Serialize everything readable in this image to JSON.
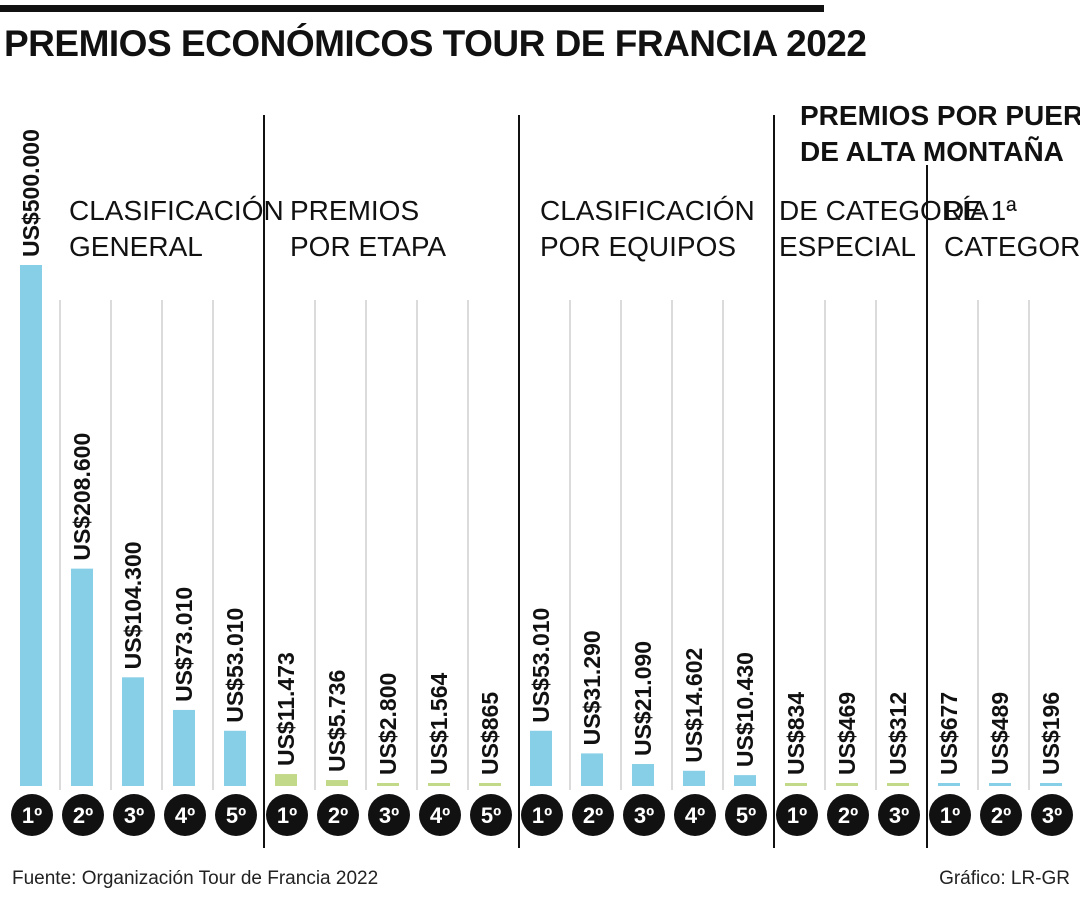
{
  "title": "PREMIOS ECONÓMICOS TOUR DE FRANCIA 2022",
  "source": "Fuente: Organización Tour de Francia 2022",
  "credit": "Gráfico: LR-GR",
  "mountain_header": [
    "PREMIOS POR PUERTOS",
    "DE ALTA MONTAÑA"
  ],
  "colors": {
    "blue": "#86cfe6",
    "green": "#c3d98a",
    "grid": "#cfcfcf",
    "divider": "#111111",
    "badge": "#111111"
  },
  "chart_data": {
    "type": "bar",
    "title": "PREMIOS ECONÓMICOS TOUR DE FRANCIA 2022",
    "xlabel": "",
    "ylabel": "",
    "ylim": [
      0,
      500000
    ],
    "grid": false,
    "legend": "none",
    "groups": [
      {
        "label": [
          "CLASIFICACIÓN",
          "GENERAL"
        ],
        "color": "#86cfe6",
        "categories": [
          "1º",
          "2º",
          "3º",
          "4º",
          "5º"
        ],
        "values": [
          500000,
          208600,
          104300,
          73010,
          53010
        ],
        "value_labels": [
          "US$500.000",
          "US$208.600",
          "US$104.300",
          "US$73.010",
          "US$53.010"
        ]
      },
      {
        "label": [
          "PREMIOS",
          "POR ETAPA"
        ],
        "color": "#c3d98a",
        "categories": [
          "1º",
          "2º",
          "3º",
          "4º",
          "5º"
        ],
        "values": [
          11473,
          5736,
          2800,
          1564,
          865
        ],
        "value_labels": [
          "US$11.473",
          "US$5.736",
          "US$2.800",
          "US$1.564",
          "US$865"
        ]
      },
      {
        "label": [
          "CLASIFICACIÓN",
          "POR EQUIPOS"
        ],
        "color": "#86cfe6",
        "categories": [
          "1º",
          "2º",
          "3º",
          "4º",
          "5º"
        ],
        "values": [
          53010,
          31290,
          21090,
          14602,
          10430
        ],
        "value_labels": [
          "US$53.010",
          "US$31.290",
          "US$21.090",
          "US$14.602",
          "US$10.430"
        ]
      },
      {
        "label": [
          "DE CATEGORÍA",
          "ESPECIAL"
        ],
        "color": "#c3d98a",
        "categories": [
          "1º",
          "2º",
          "3º"
        ],
        "values": [
          834,
          469,
          312
        ],
        "value_labels": [
          "US$834",
          "US$469",
          "US$312"
        ]
      },
      {
        "label": [
          "DE 1ª",
          "CATEGORÍA"
        ],
        "color": "#86cfe6",
        "categories": [
          "1º",
          "2º",
          "3º"
        ],
        "values": [
          677,
          489,
          196
        ],
        "value_labels": [
          "US$677",
          "US$489",
          "US$196"
        ]
      }
    ]
  }
}
